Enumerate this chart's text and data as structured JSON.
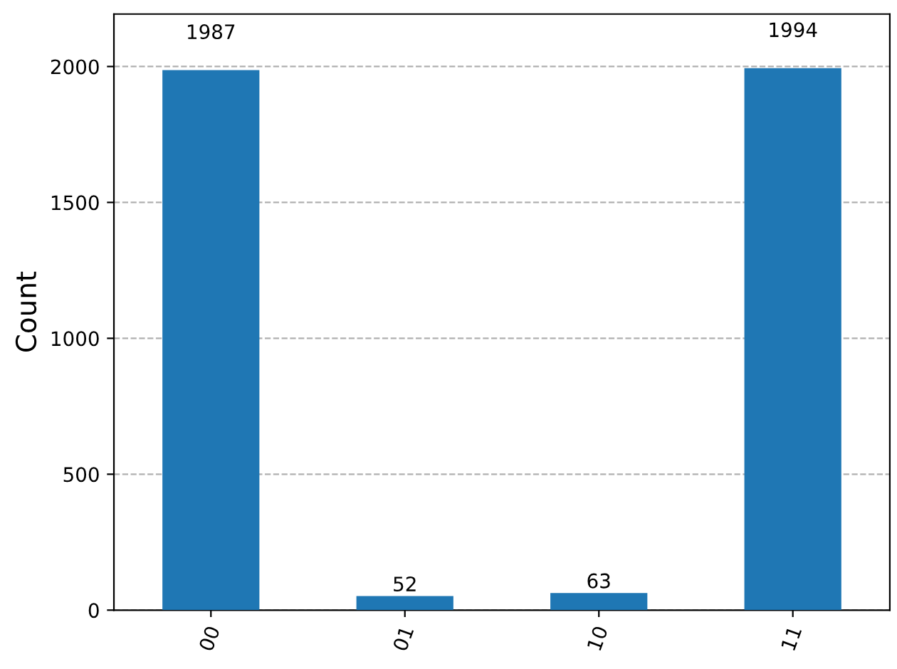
{
  "chart_data": {
    "type": "bar",
    "ylabel": "Count",
    "categories": [
      "00",
      "01",
      "10",
      "11"
    ],
    "values": [
      1987,
      52,
      63,
      1994
    ],
    "color": "#1f77b4",
    "ylim": [
      0,
      2193
    ],
    "yticks": [
      0,
      500,
      1000,
      1500,
      2000
    ],
    "grid": "y",
    "data_labels": true
  }
}
